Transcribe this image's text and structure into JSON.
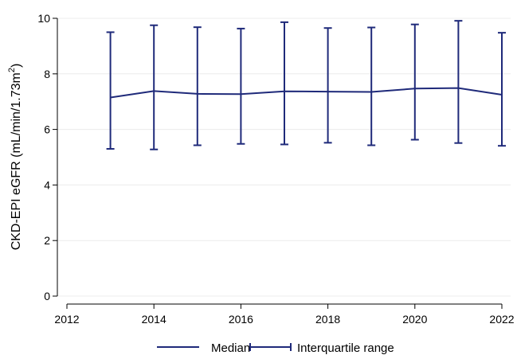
{
  "chart_data": {
    "type": "line",
    "title": "",
    "xlabel": "",
    "ylabel": "CKD-EPI eGFR (mL/min/1.73m",
    "ylabel_sup": "2",
    "ylabel_suffix": ")",
    "xlim": [
      2012,
      2022
    ],
    "ylim": [
      0,
      10
    ],
    "xticks": [
      "2012",
      "2014",
      "2016",
      "2018",
      "2020",
      "2022"
    ],
    "yticks": [
      "0",
      "2",
      "4",
      "6",
      "8",
      "10"
    ],
    "grid": "horizontal",
    "legend_position": "bottom",
    "color": "#1f2a7a",
    "x": [
      2013,
      2014,
      2015,
      2016,
      2017,
      2018,
      2019,
      2020,
      2021,
      2022
    ],
    "series": [
      {
        "name": "Median",
        "values": [
          7.15,
          7.38,
          7.28,
          7.27,
          7.37,
          7.36,
          7.35,
          7.47,
          7.49,
          7.25
        ]
      },
      {
        "name": "Interquartile range",
        "lower": [
          5.3,
          5.28,
          5.43,
          5.48,
          5.46,
          5.52,
          5.43,
          5.63,
          5.51,
          5.41
        ],
        "upper": [
          9.5,
          9.75,
          9.68,
          9.63,
          9.86,
          9.65,
          9.67,
          9.78,
          9.91,
          9.48
        ]
      }
    ]
  }
}
